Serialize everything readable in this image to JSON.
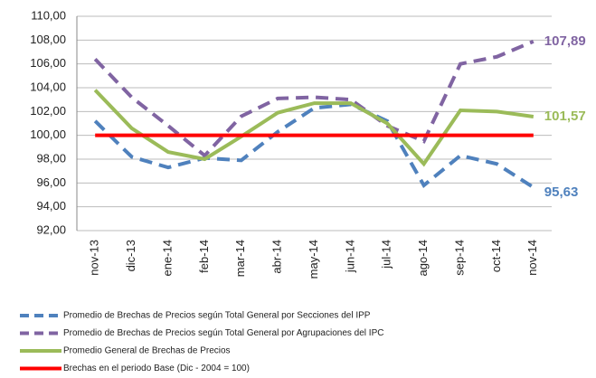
{
  "chart_data": {
    "type": "line",
    "categories": [
      "nov-13",
      "dic-13",
      "ene-14",
      "feb-14",
      "mar-14",
      "abr-14",
      "may-14",
      "jun-14",
      "jul-14",
      "ago-14",
      "sep-14",
      "oct-14",
      "nov-14"
    ],
    "ylim": [
      92,
      110
    ],
    "yticks": [
      {
        "value": 92,
        "label": "92,00"
      },
      {
        "value": 94,
        "label": "94,00"
      },
      {
        "value": 96,
        "label": "96,00"
      },
      {
        "value": 98,
        "label": "98,00"
      },
      {
        "value": 100,
        "label": "100,00"
      },
      {
        "value": 102,
        "label": "102,00"
      },
      {
        "value": 104,
        "label": "104,00"
      },
      {
        "value": 106,
        "label": "106,00"
      },
      {
        "value": 108,
        "label": "108,00"
      },
      {
        "value": 110,
        "label": "110,00"
      }
    ],
    "grid": true,
    "legend": "bottom",
    "series": [
      {
        "name": "Promedio de Brechas de Precios según Total General por Secciones del IPP",
        "color": "#4f81bd",
        "dash": true,
        "values": [
          101.2,
          98.2,
          97.3,
          98.1,
          97.9,
          100.3,
          102.3,
          102.6,
          101.2,
          95.8,
          98.3,
          97.6,
          95.63
        ],
        "value_labels": [
          null,
          null,
          null,
          null,
          null,
          null,
          null,
          null,
          null,
          null,
          null,
          null,
          "95,63"
        ]
      },
      {
        "name": "Promedio de Brechas de Precios según Total General por Agrupaciones del IPC",
        "color": "#8064a2",
        "dash": true,
        "values": [
          106.4,
          103.2,
          100.8,
          98.3,
          101.6,
          103.1,
          103.2,
          103.0,
          100.8,
          99.5,
          106.0,
          106.6,
          107.89
        ],
        "value_labels": [
          null,
          null,
          null,
          null,
          null,
          null,
          null,
          null,
          null,
          null,
          null,
          null,
          "107,89"
        ]
      },
      {
        "name": "Promedio General de Brechas de Precios",
        "color": "#9bbb59",
        "dash": false,
        "values": [
          103.8,
          100.6,
          98.6,
          98.0,
          99.9,
          101.9,
          102.7,
          102.7,
          101.0,
          97.6,
          102.1,
          102.0,
          101.57
        ],
        "value_labels": [
          null,
          null,
          null,
          null,
          null,
          null,
          null,
          null,
          null,
          null,
          null,
          null,
          "101,57"
        ]
      },
      {
        "name": "Brechas en el periodo Base (Dic - 2004 = 100)",
        "color": "#ff0000",
        "dash": false,
        "values": [
          100,
          100,
          100,
          100,
          100,
          100,
          100,
          100,
          100,
          100,
          100,
          100,
          100
        ]
      }
    ]
  }
}
